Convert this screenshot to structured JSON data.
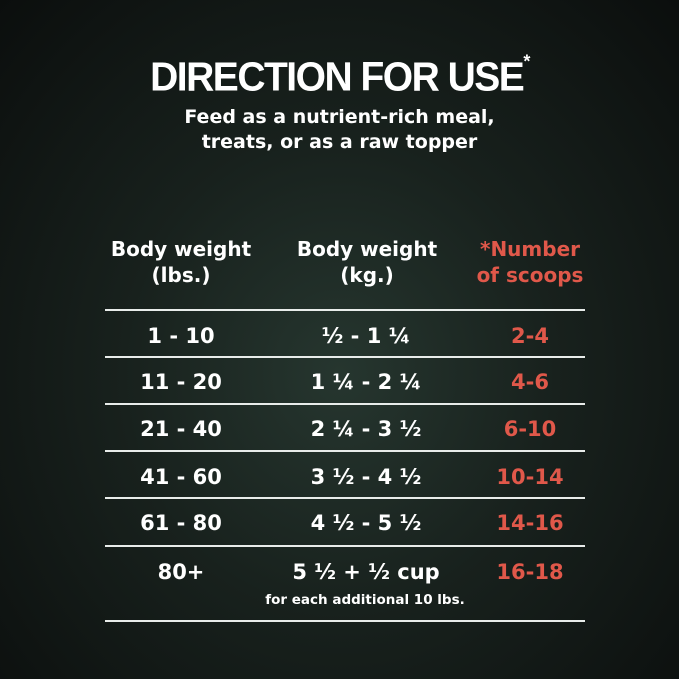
{
  "title": "DIRECTION FOR USE",
  "title_mark": "*",
  "subtitle": [
    "Feed as a nutrient-rich meal,",
    "treats, or as a raw topper"
  ],
  "colors": {
    "accent": "#e0584a",
    "text": "#ffffff"
  },
  "table": {
    "headers": [
      [
        "Body weight",
        "(lbs.)"
      ],
      [
        "Body weight",
        "(kg.)"
      ],
      [
        "*Number",
        "of scoops"
      ]
    ],
    "rows": [
      [
        "1 - 10",
        "½ - 1 ¼",
        "2-4"
      ],
      [
        "11 - 20",
        "1 ¼ - 2 ¼",
        "4-6"
      ],
      [
        "21 - 40",
        "2 ¼ - 3 ½",
        "6-10"
      ],
      [
        "41 - 60",
        "3 ½ - 4 ½",
        "10-14"
      ],
      [
        "61 - 80",
        "4 ½ - 5 ½",
        "14-16"
      ],
      [
        "80+",
        "5 ½ + ½ cup",
        "16-18"
      ]
    ],
    "last_row_note": "for each additional 10 lbs."
  }
}
